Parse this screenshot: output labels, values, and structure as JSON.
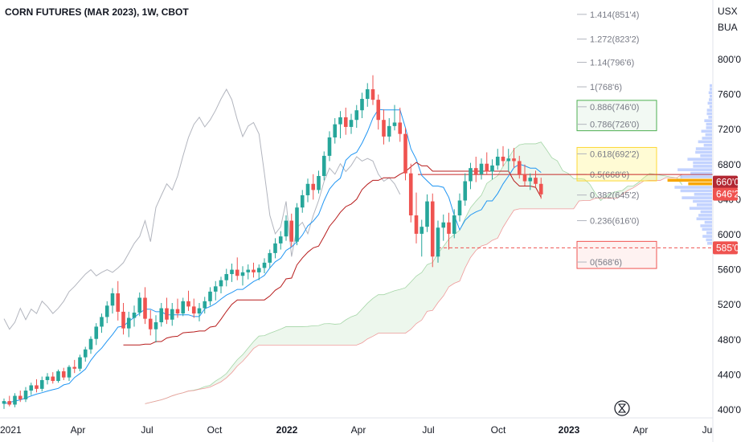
{
  "chart_data": {
    "type": "candlestick",
    "title": "CORN FUTURES (MAR 2023), 1W, CBOT",
    "currency": "USX",
    "unit": "BUA",
    "y_ticks": [
      "800'0",
      "760'0",
      "720'0",
      "680'0",
      "640'0",
      "600'0",
      "560'0",
      "520'0",
      "480'0",
      "440'0",
      "400'0"
    ],
    "y_range": [
      395,
      845
    ],
    "x_ticks": [
      {
        "label": "2021",
        "bold": false
      },
      {
        "label": "Apr",
        "bold": false
      },
      {
        "label": "Jul",
        "bold": false
      },
      {
        "label": "Oct",
        "bold": false
      },
      {
        "label": "2022",
        "bold": true
      },
      {
        "label": "Apr",
        "bold": false
      },
      {
        "label": "Jul",
        "bold": false
      },
      {
        "label": "Oct",
        "bold": false
      },
      {
        "label": "2023",
        "bold": true
      },
      {
        "label": "Apr",
        "bold": false
      },
      {
        "label": "Ju",
        "bold": false
      }
    ],
    "fib_levels": [
      {
        "ratio": "1.414",
        "label": "1.414(851'4)",
        "price": 851.5
      },
      {
        "ratio": "1.272",
        "label": "1.272(823'2)",
        "price": 823.25
      },
      {
        "ratio": "1.14",
        "label": "1.14(796'6)",
        "price": 796.75
      },
      {
        "ratio": "1",
        "label": "1(768'6)",
        "price": 768.75
      },
      {
        "ratio": "0.886",
        "label": "0.886(746'0)",
        "price": 746
      },
      {
        "ratio": "0.786",
        "label": "0.786(726'0)",
        "price": 726
      },
      {
        "ratio": "0.618",
        "label": "0.618(692'2)",
        "price": 692.25
      },
      {
        "ratio": "0.5",
        "label": "0.5(668'6)",
        "price": 668.75
      },
      {
        "ratio": "0.382",
        "label": "0.382(645'2)",
        "price": 645.25
      },
      {
        "ratio": "0.236",
        "label": "0.236(616'0)",
        "price": 616
      },
      {
        "ratio": "0",
        "label": "0(568'6)",
        "price": 568.75
      }
    ],
    "price_tags": [
      {
        "label": "660'0",
        "price": 660,
        "color": "#b22833"
      },
      {
        "label": "646'2",
        "price": 646.25,
        "color": "#ef5350"
      },
      {
        "label": "585'0",
        "price": 585,
        "color": "#ef5350"
      }
    ],
    "horizontal_line": {
      "price": 585,
      "style": "dashed",
      "color": "#ef5350"
    },
    "colors": {
      "up": "#26a69a",
      "down": "#ef5350",
      "conversion_line": "#2196f3",
      "base_line": "#b71c1c",
      "lagging_span": "#b2b5be",
      "cloud": "#e8f5e9",
      "axis_text": "#131722"
    },
    "candles": [
      {
        "o": 407,
        "h": 413,
        "l": 401,
        "c": 410
      },
      {
        "o": 410,
        "h": 416,
        "l": 404,
        "c": 406
      },
      {
        "o": 406,
        "h": 419,
        "l": 403,
        "c": 416
      },
      {
        "o": 416,
        "h": 422,
        "l": 409,
        "c": 412
      },
      {
        "o": 412,
        "h": 426,
        "l": 409,
        "c": 422
      },
      {
        "o": 422,
        "h": 431,
        "l": 417,
        "c": 428
      },
      {
        "o": 428,
        "h": 435,
        "l": 420,
        "c": 424
      },
      {
        "o": 424,
        "h": 438,
        "l": 421,
        "c": 434
      },
      {
        "o": 434,
        "h": 442,
        "l": 429,
        "c": 438
      },
      {
        "o": 438,
        "h": 443,
        "l": 430,
        "c": 433
      },
      {
        "o": 433,
        "h": 446,
        "l": 431,
        "c": 444
      },
      {
        "o": 444,
        "h": 448,
        "l": 434,
        "c": 437
      },
      {
        "o": 437,
        "h": 451,
        "l": 433,
        "c": 449
      },
      {
        "o": 449,
        "h": 457,
        "l": 442,
        "c": 447
      },
      {
        "o": 447,
        "h": 463,
        "l": 444,
        "c": 460
      },
      {
        "o": 460,
        "h": 472,
        "l": 455,
        "c": 469
      },
      {
        "o": 469,
        "h": 484,
        "l": 464,
        "c": 481
      },
      {
        "o": 481,
        "h": 499,
        "l": 474,
        "c": 495
      },
      {
        "o": 495,
        "h": 510,
        "l": 488,
        "c": 506
      },
      {
        "o": 506,
        "h": 524,
        "l": 499,
        "c": 519
      },
      {
        "o": 519,
        "h": 539,
        "l": 510,
        "c": 533
      },
      {
        "o": 533,
        "h": 547,
        "l": 502,
        "c": 512
      },
      {
        "o": 512,
        "h": 522,
        "l": 486,
        "c": 493
      },
      {
        "o": 493,
        "h": 512,
        "l": 483,
        "c": 505
      },
      {
        "o": 505,
        "h": 519,
        "l": 495,
        "c": 511
      },
      {
        "o": 511,
        "h": 534,
        "l": 507,
        "c": 528
      },
      {
        "o": 528,
        "h": 540,
        "l": 498,
        "c": 504
      },
      {
        "o": 504,
        "h": 514,
        "l": 485,
        "c": 492
      },
      {
        "o": 492,
        "h": 508,
        "l": 477,
        "c": 500
      },
      {
        "o": 500,
        "h": 522,
        "l": 495,
        "c": 516
      },
      {
        "o": 516,
        "h": 528,
        "l": 498,
        "c": 503
      },
      {
        "o": 503,
        "h": 522,
        "l": 496,
        "c": 515
      },
      {
        "o": 515,
        "h": 527,
        "l": 505,
        "c": 510
      },
      {
        "o": 510,
        "h": 528,
        "l": 507,
        "c": 524
      },
      {
        "o": 524,
        "h": 536,
        "l": 513,
        "c": 518
      },
      {
        "o": 518,
        "h": 527,
        "l": 505,
        "c": 510
      },
      {
        "o": 510,
        "h": 522,
        "l": 501,
        "c": 516
      },
      {
        "o": 516,
        "h": 529,
        "l": 510,
        "c": 524
      },
      {
        "o": 524,
        "h": 540,
        "l": 519,
        "c": 535
      },
      {
        "o": 535,
        "h": 547,
        "l": 525,
        "c": 541
      },
      {
        "o": 541,
        "h": 552,
        "l": 533,
        "c": 548
      },
      {
        "o": 548,
        "h": 561,
        "l": 541,
        "c": 555
      },
      {
        "o": 555,
        "h": 567,
        "l": 546,
        "c": 560
      },
      {
        "o": 560,
        "h": 574,
        "l": 548,
        "c": 553
      },
      {
        "o": 553,
        "h": 564,
        "l": 542,
        "c": 557
      },
      {
        "o": 557,
        "h": 566,
        "l": 549,
        "c": 560
      },
      {
        "o": 560,
        "h": 568,
        "l": 551,
        "c": 557
      },
      {
        "o": 557,
        "h": 566,
        "l": 548,
        "c": 562
      },
      {
        "o": 562,
        "h": 573,
        "l": 556,
        "c": 568
      },
      {
        "o": 568,
        "h": 583,
        "l": 562,
        "c": 579
      },
      {
        "o": 579,
        "h": 596,
        "l": 573,
        "c": 590
      },
      {
        "o": 590,
        "h": 604,
        "l": 583,
        "c": 598
      },
      {
        "o": 598,
        "h": 622,
        "l": 593,
        "c": 616
      },
      {
        "o": 616,
        "h": 624,
        "l": 586,
        "c": 592
      },
      {
        "o": 592,
        "h": 636,
        "l": 588,
        "c": 631
      },
      {
        "o": 631,
        "h": 651,
        "l": 625,
        "c": 645
      },
      {
        "o": 645,
        "h": 664,
        "l": 637,
        "c": 658
      },
      {
        "o": 658,
        "h": 669,
        "l": 640,
        "c": 651
      },
      {
        "o": 651,
        "h": 673,
        "l": 647,
        "c": 667
      },
      {
        "o": 667,
        "h": 695,
        "l": 662,
        "c": 690
      },
      {
        "o": 690,
        "h": 718,
        "l": 684,
        "c": 711
      },
      {
        "o": 711,
        "h": 733,
        "l": 704,
        "c": 726
      },
      {
        "o": 726,
        "h": 741,
        "l": 710,
        "c": 734
      },
      {
        "o": 734,
        "h": 745,
        "l": 714,
        "c": 723
      },
      {
        "o": 723,
        "h": 738,
        "l": 715,
        "c": 731
      },
      {
        "o": 731,
        "h": 748,
        "l": 722,
        "c": 742
      },
      {
        "o": 742,
        "h": 762,
        "l": 733,
        "c": 755
      },
      {
        "o": 755,
        "h": 773,
        "l": 746,
        "c": 766
      },
      {
        "o": 766,
        "h": 782,
        "l": 748,
        "c": 754
      },
      {
        "o": 754,
        "h": 760,
        "l": 720,
        "c": 731
      },
      {
        "o": 731,
        "h": 743,
        "l": 703,
        "c": 712
      },
      {
        "o": 712,
        "h": 733,
        "l": 706,
        "c": 724
      },
      {
        "o": 724,
        "h": 748,
        "l": 719,
        "c": 728
      },
      {
        "o": 728,
        "h": 745,
        "l": 706,
        "c": 715
      },
      {
        "o": 715,
        "h": 722,
        "l": 662,
        "c": 670
      },
      {
        "o": 670,
        "h": 681,
        "l": 614,
        "c": 622
      },
      {
        "o": 622,
        "h": 648,
        "l": 590,
        "c": 601
      },
      {
        "o": 601,
        "h": 617,
        "l": 575,
        "c": 609
      },
      {
        "o": 609,
        "h": 646,
        "l": 603,
        "c": 638
      },
      {
        "o": 638,
        "h": 647,
        "l": 563,
        "c": 575
      },
      {
        "o": 575,
        "h": 616,
        "l": 568,
        "c": 608
      },
      {
        "o": 608,
        "h": 623,
        "l": 593,
        "c": 614
      },
      {
        "o": 614,
        "h": 625,
        "l": 583,
        "c": 601
      },
      {
        "o": 601,
        "h": 629,
        "l": 596,
        "c": 622
      },
      {
        "o": 622,
        "h": 647,
        "l": 615,
        "c": 639
      },
      {
        "o": 639,
        "h": 670,
        "l": 633,
        "c": 661
      },
      {
        "o": 661,
        "h": 682,
        "l": 652,
        "c": 676
      },
      {
        "o": 676,
        "h": 689,
        "l": 660,
        "c": 669
      },
      {
        "o": 669,
        "h": 687,
        "l": 663,
        "c": 681
      },
      {
        "o": 681,
        "h": 694,
        "l": 669,
        "c": 672
      },
      {
        "o": 672,
        "h": 686,
        "l": 663,
        "c": 679
      },
      {
        "o": 679,
        "h": 698,
        "l": 674,
        "c": 689
      },
      {
        "o": 689,
        "h": 701,
        "l": 678,
        "c": 684
      },
      {
        "o": 684,
        "h": 698,
        "l": 672,
        "c": 687
      },
      {
        "o": 687,
        "h": 699,
        "l": 676,
        "c": 684
      },
      {
        "o": 684,
        "h": 690,
        "l": 664,
        "c": 669
      },
      {
        "o": 669,
        "h": 680,
        "l": 656,
        "c": 661
      },
      {
        "o": 661,
        "h": 670,
        "l": 651,
        "c": 665
      },
      {
        "o": 665,
        "h": 673,
        "l": 654,
        "c": 658
      },
      {
        "o": 658,
        "h": 665,
        "l": 641,
        "c": 646
      }
    ]
  }
}
